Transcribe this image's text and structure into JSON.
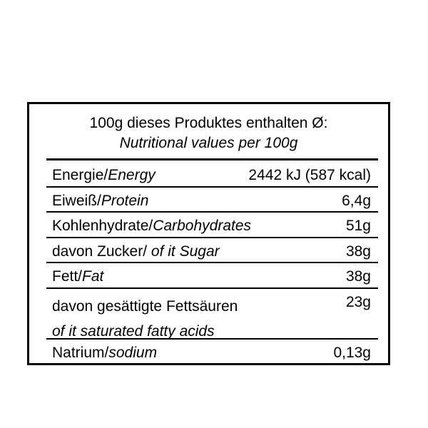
{
  "header": {
    "line1": "100g dieses Produktes enthalten Ø:",
    "line2": "Nutritional values per 100g"
  },
  "rows": [
    {
      "de": "Energie/",
      "en": "Energy",
      "value": "2442 kJ (587 kcal)"
    },
    {
      "de": "Eiweiß/",
      "en": "Protein",
      "value": "6,4g"
    },
    {
      "de": "Kohlenhydrate/",
      "en": "Carbohydrates",
      "value": "51g"
    },
    {
      "de": "davon Zucker/ ",
      "en": "of it Sugar",
      "value": "38g"
    },
    {
      "de": "Fett/",
      "en": "Fat",
      "value": "38g"
    },
    {
      "de": "davon gesättigte Fettsäuren",
      "en": "of it saturated fatty acids",
      "value": "23g"
    },
    {
      "de": "Natrium/",
      "en": "sodium",
      "value": "0,13g"
    }
  ]
}
